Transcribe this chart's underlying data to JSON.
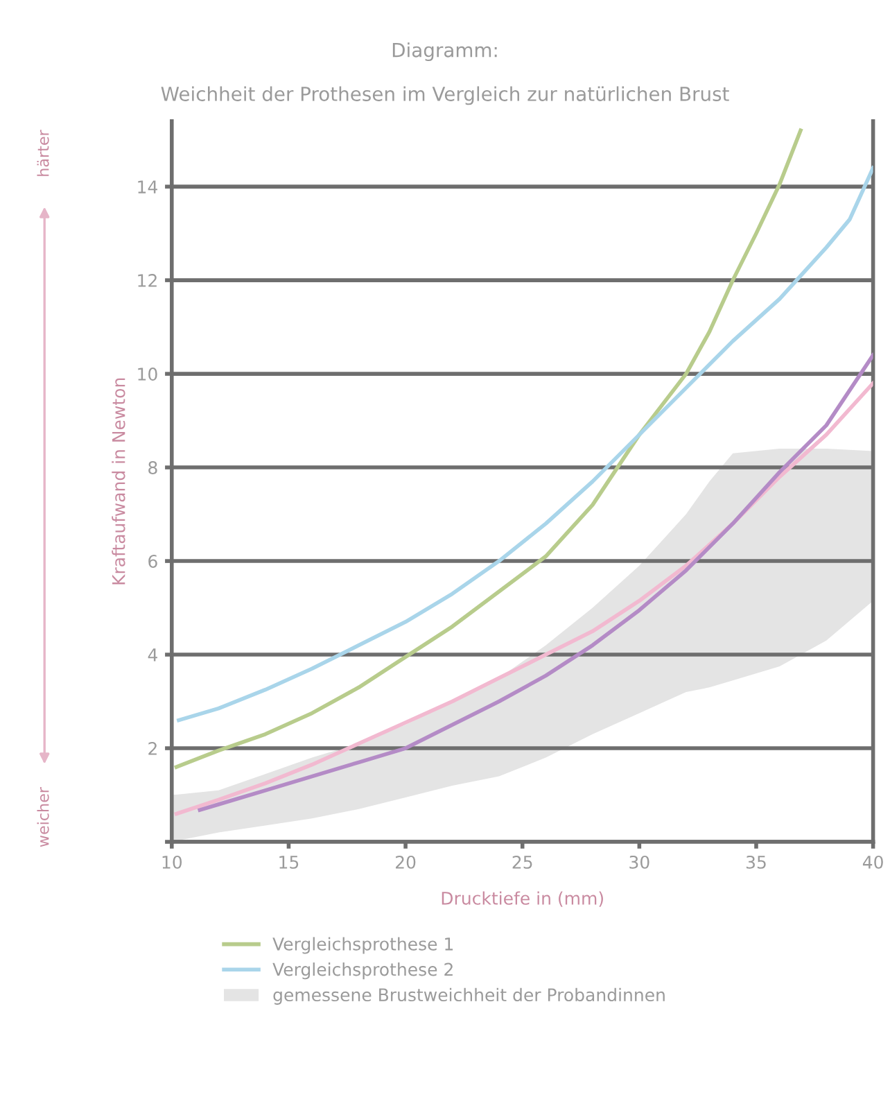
{
  "chart_data": {
    "type": "line",
    "title": "Diagramm:",
    "subtitle": "Weichheit der Prothesen im Vergleich zur natürlichen Brust",
    "xlabel": "Drucktiefe in (mm)",
    "ylabel": "Kraftaufwand in Newton",
    "annotations": [
      "härter",
      "weicher"
    ],
    "xlim": [
      10,
      40
    ],
    "xticks": [
      10,
      15,
      20,
      25,
      30,
      35,
      40
    ],
    "ylim": [
      0,
      15.4
    ],
    "yticks": [
      {
        "value": 0,
        "label": null
      },
      2,
      4,
      6,
      8,
      10,
      12,
      14
    ],
    "grid": "y",
    "legend": "bottom",
    "series": [
      {
        "name": "gemessene Brustweichheit der Probandinnen",
        "color": "#e4e4e4",
        "x": [
          10,
          12,
          14,
          16,
          18,
          20,
          22,
          24,
          26,
          28,
          30,
          32,
          33,
          34,
          36,
          38,
          40
        ],
        "values": [
          null,
          null,
          null,
          null,
          null,
          null,
          null,
          null,
          null,
          null,
          null,
          null,
          null,
          null,
          null,
          null,
          null
        ],
        "upper": [
          1.0,
          1.1,
          1.45,
          1.8,
          2.1,
          2.5,
          3.0,
          3.5,
          4.2,
          5.0,
          5.9,
          7.0,
          7.7,
          8.3,
          8.4,
          8.4,
          8.35
        ],
        "lower": [
          0.0,
          0.2,
          0.35,
          0.5,
          0.7,
          0.95,
          1.2,
          1.4,
          1.8,
          2.3,
          2.75,
          3.2,
          3.3,
          3.45,
          3.75,
          4.3,
          5.15
        ]
      },
      {
        "name": "Vergleichsprothese 1",
        "color": "#b8cc8c",
        "x": [
          10.2,
          12,
          14,
          16,
          18,
          20,
          22,
          24,
          26,
          28,
          30,
          32,
          33,
          34,
          35,
          36,
          36.9
        ],
        "values": [
          1.6,
          1.95,
          2.3,
          2.75,
          3.3,
          3.95,
          4.6,
          5.35,
          6.1,
          7.2,
          8.7,
          10.0,
          10.9,
          12.0,
          13.0,
          14.05,
          15.2
        ]
      },
      {
        "name": "Vergleichsprothese 2",
        "color": "#a9d5ea",
        "x": [
          10.3,
          12,
          14,
          16,
          18,
          20,
          22,
          24,
          26,
          28,
          30,
          32,
          34,
          36,
          38,
          39,
          40
        ],
        "values": [
          2.6,
          2.85,
          3.25,
          3.7,
          4.2,
          4.7,
          5.3,
          6.0,
          6.8,
          7.7,
          8.7,
          9.7,
          10.7,
          11.6,
          12.7,
          13.3,
          14.4
        ]
      },
      {
        "color": "#f2b9d0",
        "x": [
          10.2,
          12,
          14,
          16,
          18,
          20,
          22,
          24,
          26,
          28,
          30,
          32,
          34,
          36,
          38,
          40
        ],
        "values": [
          0.6,
          0.9,
          1.25,
          1.65,
          2.1,
          2.55,
          3.0,
          3.5,
          4.0,
          4.5,
          5.15,
          5.9,
          6.8,
          7.8,
          8.7,
          9.8
        ]
      },
      {
        "color": "#b48bc6",
        "x": [
          11.2,
          12,
          14,
          16,
          18,
          20,
          22,
          24,
          26,
          28,
          30,
          32,
          34,
          36,
          38,
          40
        ],
        "values": [
          0.68,
          0.8,
          1.1,
          1.4,
          1.7,
          2.0,
          2.5,
          3.0,
          3.55,
          4.2,
          4.95,
          5.8,
          6.8,
          7.9,
          8.9,
          10.4
        ]
      }
    ]
  }
}
